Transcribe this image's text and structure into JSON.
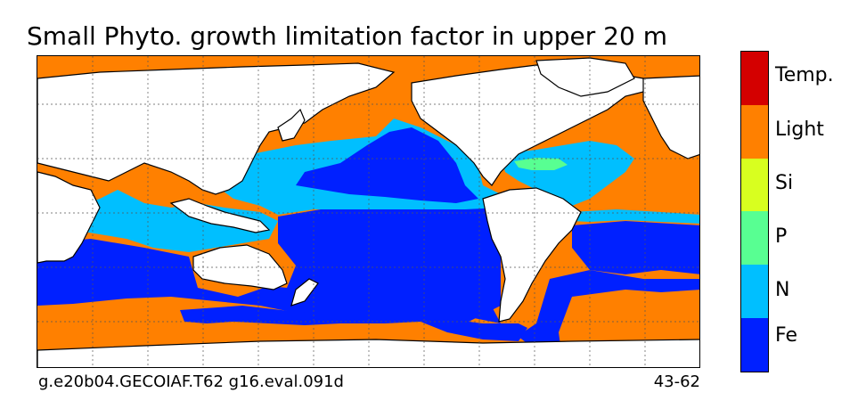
{
  "title": "Small Phyto. growth limitation factor in upper 20 m",
  "footer": {
    "case_name": "g.e20b04.GECOIAF.T62 g16.eval.091d",
    "years": "43-62"
  },
  "legend": {
    "categories": [
      {
        "label": "Temp.",
        "color": "#d40000"
      },
      {
        "label": "Light",
        "color": "#ff8000"
      },
      {
        "label": "Si",
        "color": "#d8ff1f"
      },
      {
        "label": "P",
        "color": "#58ff92"
      },
      {
        "label": "N",
        "color": "#00bfff"
      },
      {
        "label": "Fe",
        "color": "#0020ff"
      }
    ]
  },
  "map": {
    "projection": "cylindrical, centered on the Pacific",
    "gridlines": "dotted",
    "land_color": "#ffffff"
  }
}
